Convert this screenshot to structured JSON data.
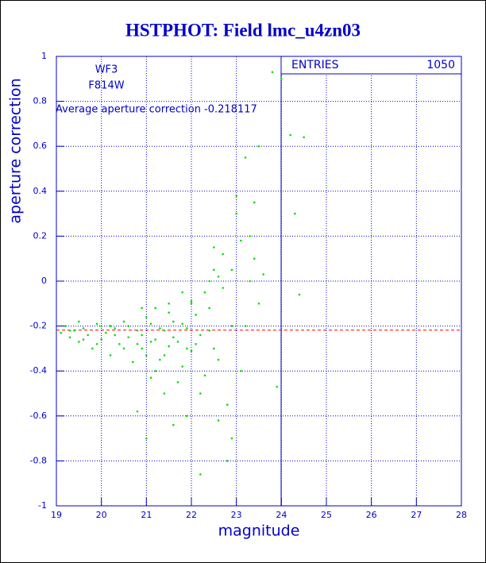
{
  "chart_data": {
    "type": "scatter",
    "title": "HSTPHOT: Field lmc_u4zn03",
    "x_label": "magnitude",
    "y_label": "aperture correction",
    "annotations": [
      "WF3",
      "F814W"
    ],
    "average": {
      "label": "Average aperture correction -0.218117",
      "value": -0.218117,
      "color": "#ff0000"
    },
    "entries_label": "ENTRIES",
    "entries": 1050,
    "color": "#00e000",
    "grid": true,
    "xlim": [
      19,
      28
    ],
    "xticks": [
      19,
      20,
      21,
      22,
      23,
      24,
      25,
      26,
      27,
      28
    ],
    "ylim": [
      -1,
      1
    ],
    "yticks": [
      -1,
      -0.8,
      -0.6,
      -0.4,
      -0.2,
      0,
      0.2,
      0.4,
      0.6,
      0.8,
      1
    ],
    "x": [
      19.1,
      19.2,
      19.3,
      19.4,
      19.5,
      19.6,
      19.7,
      19.8,
      19.9,
      20.0,
      20.1,
      20.2,
      20.3,
      20.4,
      20.5,
      20.6,
      20.7,
      20.8,
      20.9,
      21.0,
      21.1,
      21.2,
      21.3,
      21.4,
      21.5,
      21.6,
      21.7,
      21.8,
      21.9,
      22.0,
      22.1,
      22.2,
      22.3,
      22.4,
      22.5,
      22.6,
      22.7,
      22.8,
      22.9,
      23.0,
      23.1,
      23.2,
      23.3,
      23.4,
      23.5,
      23.6,
      23.8,
      24.0,
      24.2,
      24.3,
      24.5,
      23.9,
      24.4,
      23.0,
      20.5,
      20.6,
      20.8,
      20.9,
      21.0,
      21.1,
      21.2,
      21.3,
      21.4,
      21.5,
      21.6,
      21.7,
      21.8,
      21.9,
      22.0,
      22.1,
      22.2,
      22.3,
      22.4,
      22.5,
      20.3,
      20.2,
      21.1,
      21.4,
      21.9,
      22.6,
      22.9,
      20.8,
      21.6,
      22.2,
      22.8,
      21.0,
      22.0,
      21.8,
      22.4,
      22.7,
      22.9,
      22.5,
      23.1,
      23.3,
      23.2,
      23.5,
      23.4,
      22.6,
      21.5,
      21.2,
      20.9,
      19.5,
      19.9,
      20.0,
      19.3,
      19.6
    ],
    "values": [
      -0.23,
      -0.2,
      -0.25,
      -0.22,
      -0.27,
      -0.21,
      -0.24,
      -0.3,
      -0.19,
      -0.26,
      -0.23,
      -0.33,
      -0.21,
      -0.28,
      -0.18,
      -0.25,
      -0.36,
      -0.22,
      -0.3,
      -0.16,
      -0.27,
      -0.4,
      -0.21,
      -0.33,
      -0.14,
      -0.25,
      -0.45,
      -0.19,
      -0.3,
      -0.1,
      -0.28,
      -0.5,
      -0.05,
      -0.22,
      0.05,
      -0.35,
      0.12,
      -0.55,
      -0.2,
      0.3,
      -0.4,
      0.55,
      0.2,
      0.1,
      0.6,
      0.03,
      0.93,
      0.9,
      0.65,
      0.3,
      0.64,
      -0.47,
      -0.06,
      0.38,
      -0.3,
      -0.2,
      -0.28,
      -0.24,
      -0.33,
      -0.19,
      -0.26,
      -0.35,
      -0.22,
      -0.29,
      -0.18,
      -0.27,
      -0.38,
      -0.21,
      -0.31,
      -0.15,
      -0.24,
      -0.42,
      -0.12,
      -0.3,
      -0.24,
      -0.2,
      -0.43,
      -0.5,
      -0.6,
      -0.62,
      -0.7,
      -0.58,
      -0.64,
      -0.86,
      -0.8,
      -0.7,
      -0.09,
      -0.05,
      0.0,
      -0.03,
      0.05,
      0.15,
      0.18,
      0.0,
      -0.2,
      -0.1,
      0.35,
      0.02,
      -0.1,
      -0.12,
      -0.12,
      -0.18,
      -0.28,
      -0.2,
      -0.22,
      -0.26
    ]
  }
}
